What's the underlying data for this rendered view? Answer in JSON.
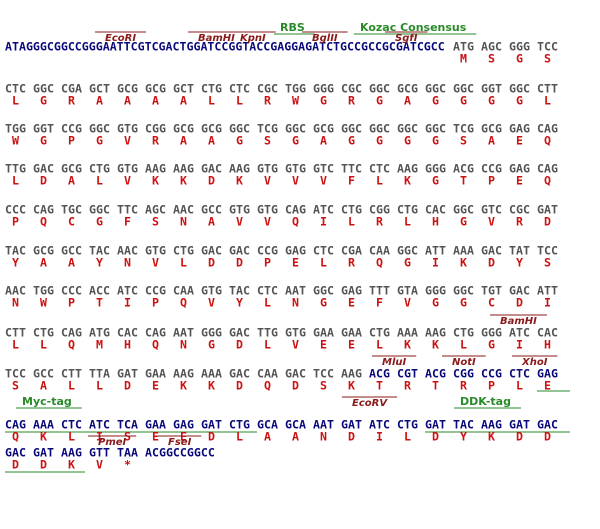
{
  "lines": [
    {
      "annotations": [
        "EcoRI",
        "BamHI",
        "KpnI",
        "RBS",
        "BglII",
        "Kozac Consensus",
        "SgfI"
      ],
      "leader": "ATAGGGCGGCCGGGAATTCGTCGACTGGATCCGGTACCGAGGAGATCTGCCGCCGCGATCGCC",
      "codons": [
        "ATG",
        "AGC",
        "GGG",
        "TCC"
      ],
      "aa": [
        "M",
        "S",
        "G",
        "S"
      ]
    },
    {
      "codons": [
        "CTC",
        "GGC",
        "CGA",
        "GCT",
        "GCG",
        "GCG",
        "GCT",
        "CTG",
        "CTC",
        "CGC",
        "TGG",
        "GGG",
        "CGC",
        "GGC",
        "GCG",
        "GGC",
        "GGC",
        "GGT",
        "GGC",
        "CTT"
      ],
      "aa": [
        "L",
        "G",
        "R",
        "A",
        "A",
        "A",
        "A",
        "L",
        "L",
        "R",
        "W",
        "G",
        "R",
        "G",
        "A",
        "G",
        "G",
        "G",
        "G",
        "L"
      ]
    },
    {
      "codons": [
        "TGG",
        "GGT",
        "CCG",
        "GGC",
        "GTG",
        "CGG",
        "GCG",
        "GCG",
        "GGC",
        "TCG",
        "GGC",
        "GCG",
        "GGC",
        "GGC",
        "GGC",
        "GGC",
        "TCG",
        "GCG",
        "GAG",
        "CAG"
      ],
      "aa": [
        "W",
        "G",
        "P",
        "G",
        "V",
        "R",
        "A",
        "A",
        "G",
        "S",
        "G",
        "A",
        "G",
        "G",
        "G",
        "G",
        "S",
        "A",
        "E",
        "Q"
      ]
    },
    {
      "codons": [
        "TTG",
        "GAC",
        "GCG",
        "CTG",
        "GTG",
        "AAG",
        "AAG",
        "GAC",
        "AAG",
        "GTG",
        "GTG",
        "GTC",
        "TTC",
        "CTC",
        "AAG",
        "GGG",
        "ACG",
        "CCG",
        "GAG",
        "CAG"
      ],
      "aa": [
        "L",
        "D",
        "A",
        "L",
        "V",
        "K",
        "K",
        "D",
        "K",
        "V",
        "V",
        "V",
        "F",
        "L",
        "K",
        "G",
        "T",
        "P",
        "E",
        "Q"
      ]
    },
    {
      "codons": [
        "CCC",
        "CAG",
        "TGC",
        "GGC",
        "TTC",
        "AGC",
        "AAC",
        "GCC",
        "GTG",
        "GTG",
        "CAG",
        "ATC",
        "CTG",
        "CGG",
        "CTG",
        "CAC",
        "GGC",
        "GTC",
        "CGC",
        "GAT"
      ],
      "aa": [
        "P",
        "Q",
        "C",
        "G",
        "F",
        "S",
        "N",
        "A",
        "V",
        "V",
        "Q",
        "I",
        "L",
        "R",
        "L",
        "H",
        "G",
        "V",
        "R",
        "D"
      ]
    },
    {
      "codons": [
        "TAC",
        "GCG",
        "GCC",
        "TAC",
        "AAC",
        "GTG",
        "CTG",
        "GAC",
        "GAC",
        "CCG",
        "GAG",
        "CTC",
        "CGA",
        "CAA",
        "GGC",
        "ATT",
        "AAA",
        "GAC",
        "TAT",
        "TCC"
      ],
      "aa": [
        "Y",
        "A",
        "A",
        "Y",
        "N",
        "V",
        "L",
        "D",
        "D",
        "P",
        "E",
        "L",
        "R",
        "Q",
        "G",
        "I",
        "K",
        "D",
        "Y",
        "S"
      ]
    },
    {
      "codons": [
        "AAC",
        "TGG",
        "CCC",
        "ACC",
        "ATC",
        "CCG",
        "CAA",
        "GTG",
        "TAC",
        "CTC",
        "AAT",
        "GGC",
        "GAG",
        "TTT",
        "GTA",
        "GGG",
        "GGC",
        "TGT",
        "GAC",
        "ATT"
      ],
      "aa": [
        "N",
        "W",
        "P",
        "T",
        "I",
        "P",
        "Q",
        "V",
        "Y",
        "L",
        "N",
        "G",
        "E",
        "F",
        "V",
        "G",
        "G",
        "C",
        "D",
        "I"
      ]
    },
    {
      "annotations": [
        "BamHI"
      ],
      "codons": [
        "CTT",
        "CTG",
        "CAG",
        "ATG",
        "CAC",
        "CAG",
        "AAT",
        "GGG",
        "GAC",
        "TTG",
        "GTG",
        "GAA",
        "GAA",
        "CTG",
        "AAA",
        "AAG",
        "CTG",
        "GGG",
        "ATC",
        "CAC"
      ],
      "aa": [
        "L",
        "L",
        "Q",
        "M",
        "H",
        "Q",
        "N",
        "G",
        "D",
        "L",
        "V",
        "E",
        "E",
        "L",
        "K",
        "K",
        "L",
        "G",
        "I",
        "H"
      ]
    },
    {
      "annotations": [
        "MluI",
        "NotI",
        "XhoI"
      ],
      "codons": [
        "TCC",
        "GCC",
        "CTT",
        "TTA",
        "GAT",
        "GAA",
        "AAG",
        "AAA",
        "GAC",
        "CAA",
        "GAC",
        "TCC",
        "AAG",
        "ACG",
        "CGT",
        "ACG",
        "CGG",
        "CCG",
        "CTC",
        "GAG"
      ],
      "aa": [
        "S",
        "A",
        "L",
        "L",
        "D",
        "E",
        "K",
        "K",
        "D",
        "Q",
        "D",
        "S",
        "K",
        "T",
        "R",
        "T",
        "R",
        "P",
        "L",
        "E"
      ]
    },
    {
      "annotations": [
        "Myc-tag",
        "EcoRV",
        "DDK-tag"
      ],
      "codons": [
        "CAG",
        "AAA",
        "CTC",
        "ATC",
        "TCA",
        "GAA",
        "GAG",
        "GAT",
        "CTG",
        "GCA",
        "GCA",
        "AAT",
        "GAT",
        "ATC",
        "CTG",
        "GAT",
        "TAC",
        "AAG",
        "GAT",
        "GAC"
      ],
      "aa": [
        "Q",
        "K",
        "L",
        "I",
        "S",
        "E",
        "E",
        "D",
        "L",
        "A",
        "A",
        "N",
        "D",
        "I",
        "L",
        "D",
        "Y",
        "K",
        "D",
        "D"
      ]
    },
    {
      "annotations": [
        "PmeI",
        "FseI"
      ],
      "codons": [
        "GAC",
        "GAT",
        "AAG",
        "GTT",
        "TAA",
        "ACGGCCGGCC"
      ],
      "aa": [
        "D",
        "D",
        "K",
        "V",
        "*"
      ]
    }
  ]
}
